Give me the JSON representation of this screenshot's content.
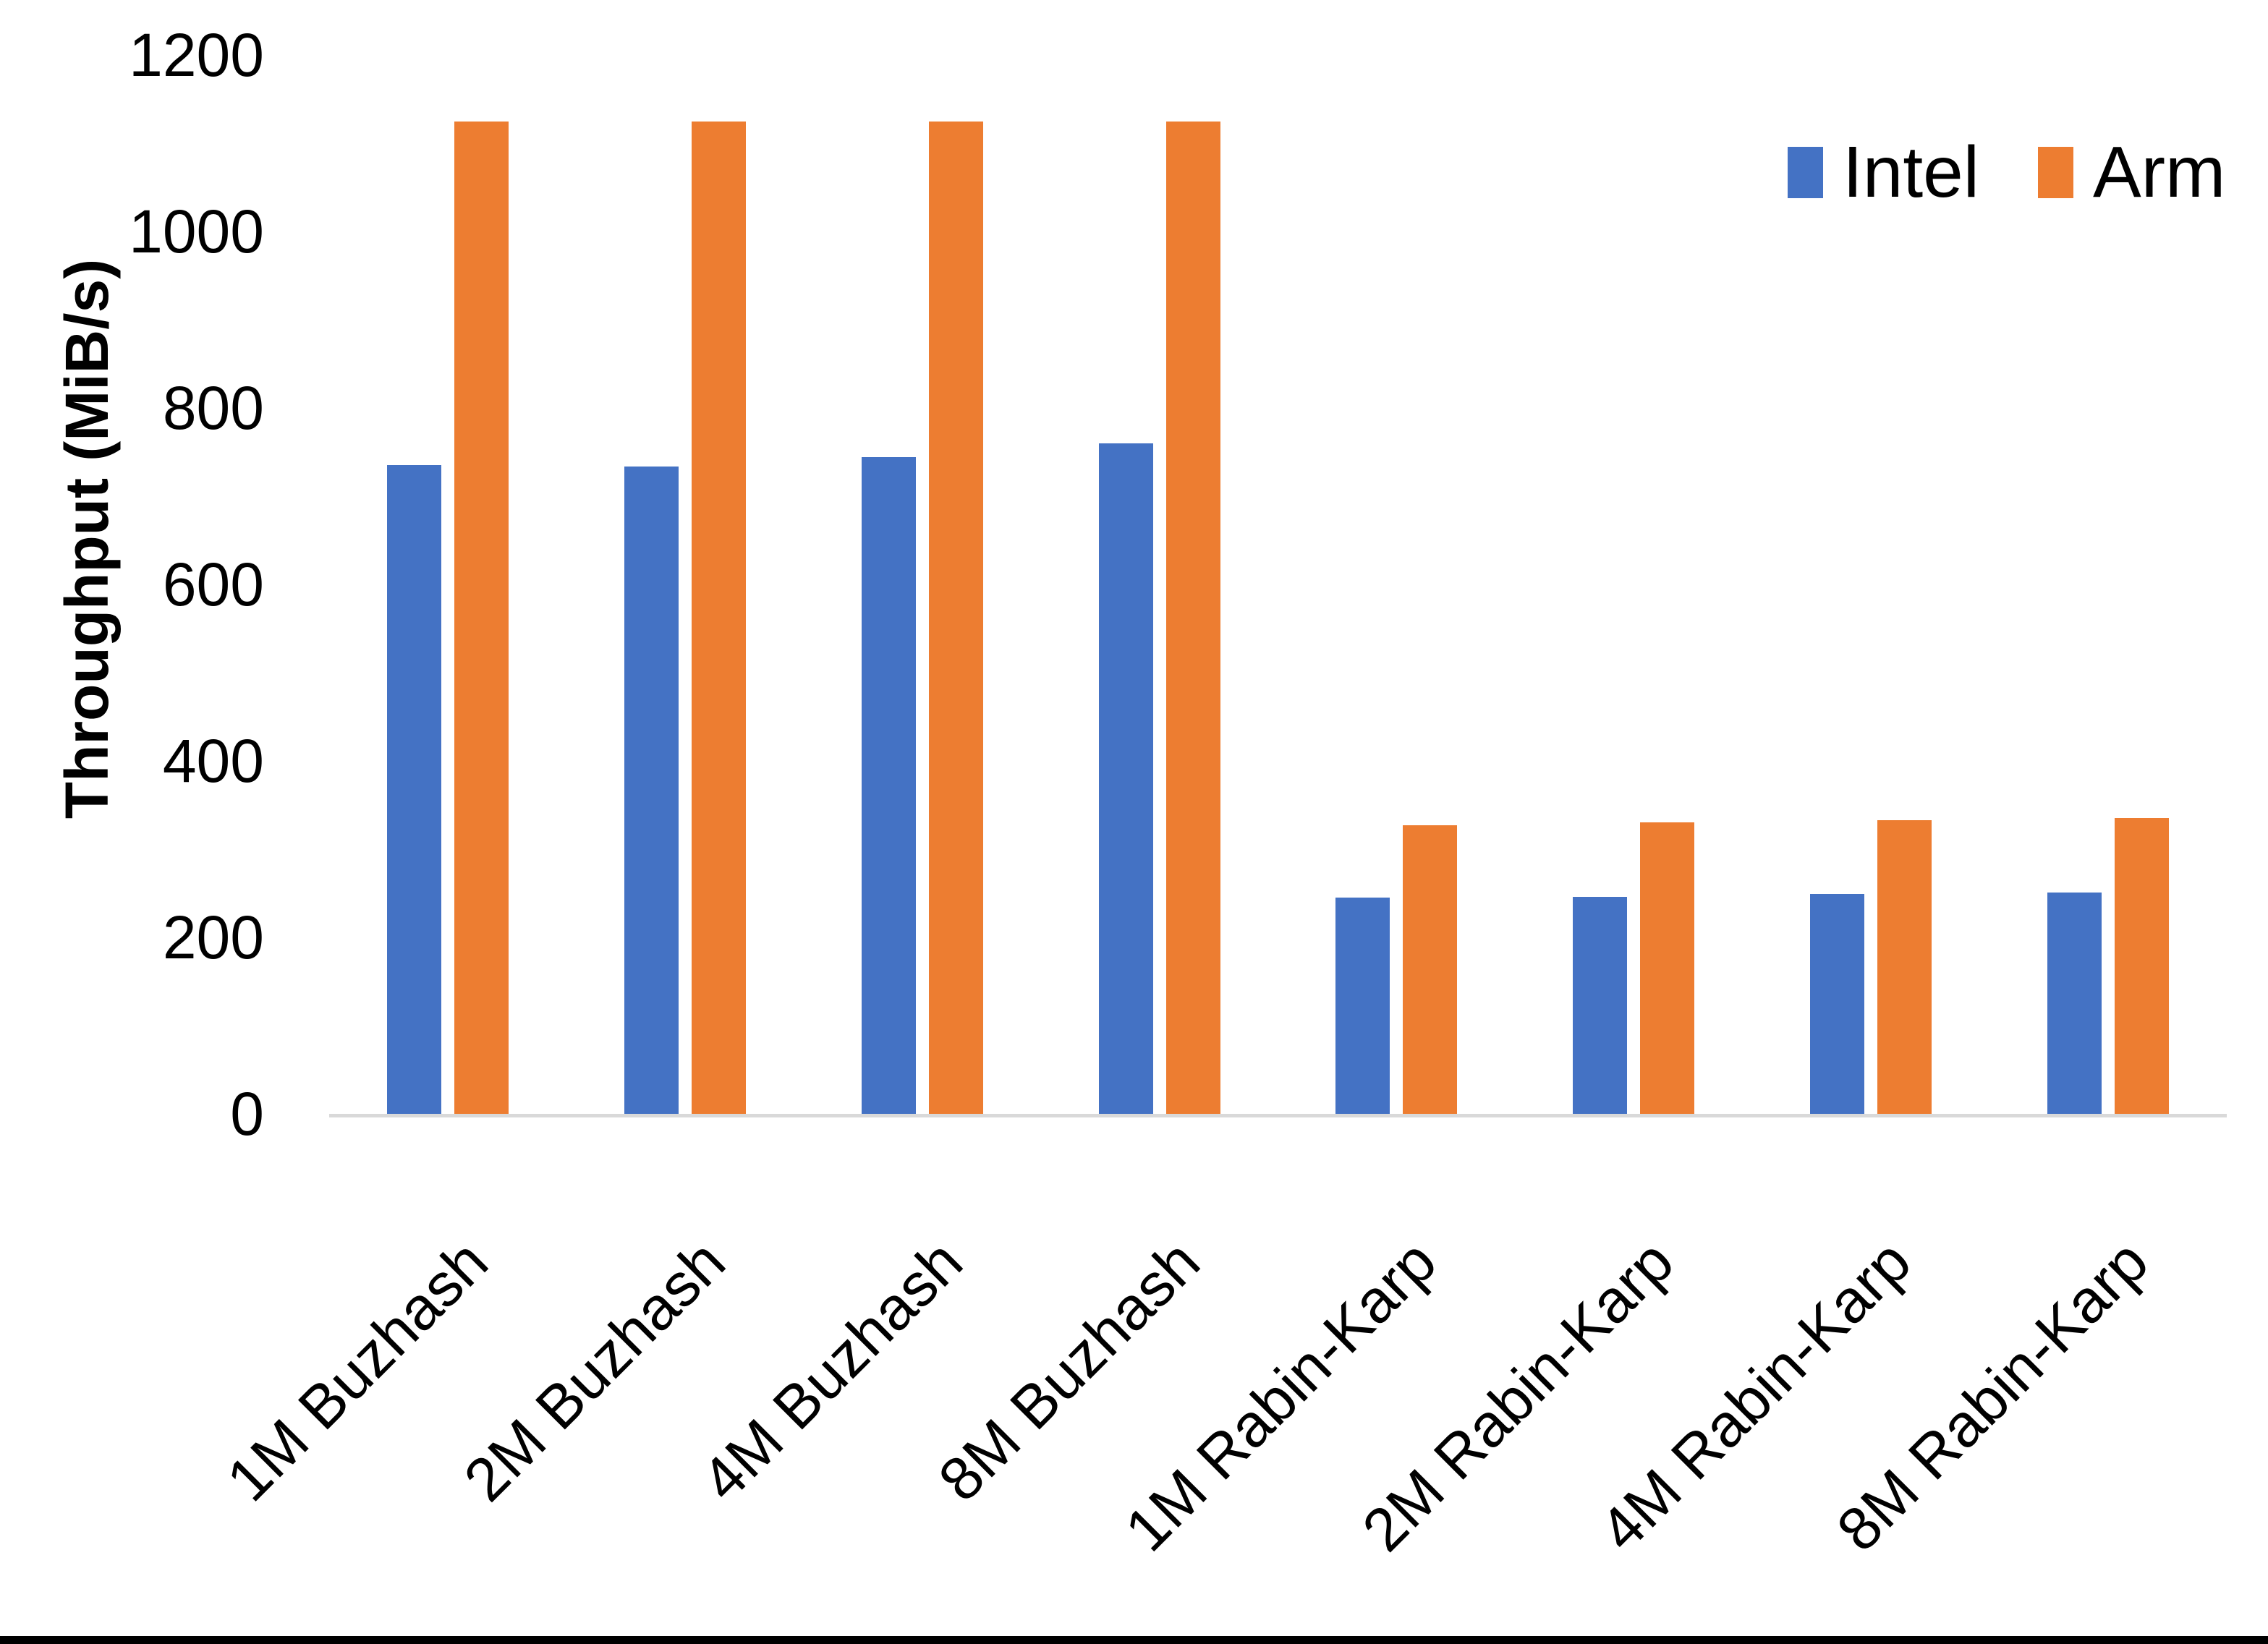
{
  "chart_data": {
    "type": "bar",
    "title": "",
    "xlabel": "",
    "ylabel": "Throughput (MiB/s)",
    "ylim": [
      0,
      1200
    ],
    "yticks": [
      0,
      200,
      400,
      600,
      800,
      1000,
      1200
    ],
    "grid": false,
    "legend_position": "top-right",
    "categories": [
      "1M Buzhash",
      "2M Buzhash",
      "4M Buzhash",
      "8M Buzhash",
      "1M Rabin-Karp",
      "2M Rabin-Karp",
      "4M Rabin-Karp",
      "8M Rabin-Karp"
    ],
    "series": [
      {
        "name": "Intel",
        "color": "#4472C4",
        "values": [
          735,
          734,
          744,
          760,
          245,
          246,
          249,
          251
        ]
      },
      {
        "name": "Arm",
        "color": "#ED7D31",
        "values": [
          1125,
          1125,
          1125,
          1125,
          327,
          330,
          333,
          335
        ]
      }
    ]
  },
  "colors": {
    "background": "#FFFFFF",
    "axis_line": "#D9D9D9",
    "text": "#000000",
    "bottom_border": "#000000"
  }
}
